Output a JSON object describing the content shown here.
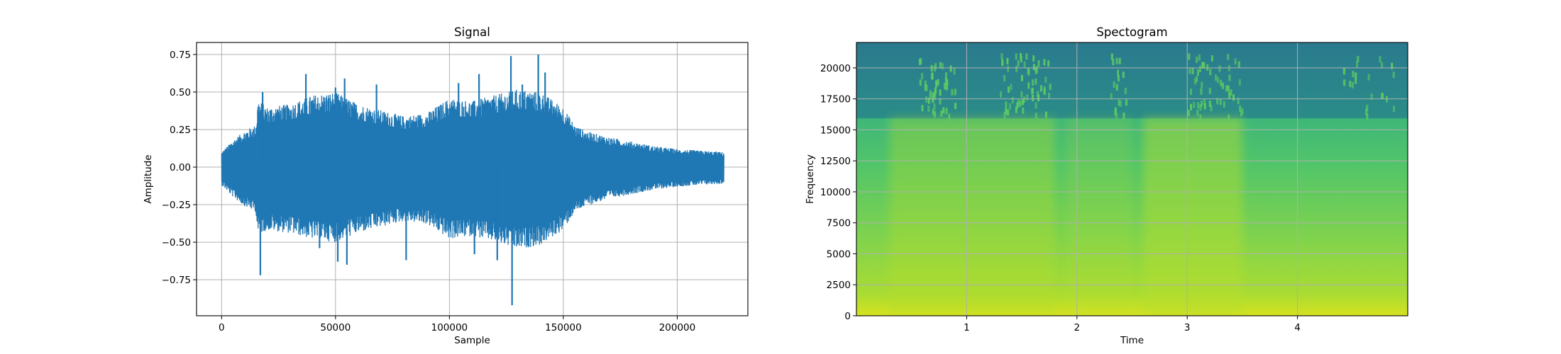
{
  "chart_data": [
    {
      "type": "line",
      "title": "Signal",
      "xlabel": "Sample",
      "ylabel": "Amplitude",
      "xlim": [
        -11000,
        231000
      ],
      "ylim": [
        -0.99,
        0.83
      ],
      "xticks": [
        0,
        50000,
        100000,
        150000,
        200000
      ],
      "xtick_labels": [
        "0",
        "50000",
        "100000",
        "150000",
        "200000"
      ],
      "yticks": [
        -0.75,
        -0.5,
        -0.25,
        0.0,
        0.25,
        0.5,
        0.75
      ],
      "ytick_labels": [
        "−0.75",
        "−0.50",
        "−0.25",
        "0.00",
        "0.25",
        "0.50",
        "0.75"
      ],
      "grid": true,
      "color": "#1f77b4",
      "envelope": {
        "x": [
          0,
          5000,
          10000,
          15000,
          16000,
          20000,
          30000,
          40000,
          50000,
          60000,
          70000,
          80000,
          90000,
          100000,
          110000,
          120000,
          130000,
          140000,
          150000,
          155000,
          160000,
          170000,
          180000,
          190000,
          200000,
          210000,
          220500
        ],
        "upper": [
          0.1,
          0.18,
          0.24,
          0.28,
          0.45,
          0.4,
          0.42,
          0.48,
          0.5,
          0.42,
          0.38,
          0.34,
          0.36,
          0.46,
          0.44,
          0.48,
          0.52,
          0.5,
          0.4,
          0.28,
          0.24,
          0.2,
          0.17,
          0.14,
          0.12,
          0.11,
          0.1
        ],
        "lower": [
          -0.12,
          -0.2,
          -0.26,
          -0.3,
          -0.45,
          -0.42,
          -0.44,
          -0.48,
          -0.5,
          -0.44,
          -0.4,
          -0.36,
          -0.38,
          -0.48,
          -0.46,
          -0.5,
          -0.55,
          -0.52,
          -0.42,
          -0.3,
          -0.26,
          -0.21,
          -0.18,
          -0.15,
          -0.13,
          -0.12,
          -0.11
        ]
      },
      "spikes": [
        {
          "x": 17000,
          "y": -0.72
        },
        {
          "x": 18000,
          "y": 0.5
        },
        {
          "x": 37000,
          "y": 0.62
        },
        {
          "x": 43000,
          "y": -0.54
        },
        {
          "x": 50000,
          "y": 0.53
        },
        {
          "x": 51000,
          "y": -0.63
        },
        {
          "x": 54000,
          "y": 0.59
        },
        {
          "x": 55000,
          "y": -0.65
        },
        {
          "x": 68000,
          "y": 0.55
        },
        {
          "x": 81000,
          "y": -0.62
        },
        {
          "x": 104000,
          "y": 0.56
        },
        {
          "x": 111000,
          "y": -0.58
        },
        {
          "x": 113000,
          "y": 0.62
        },
        {
          "x": 121000,
          "y": -0.62
        },
        {
          "x": 127000,
          "y": 0.74
        },
        {
          "x": 127500,
          "y": -0.92
        },
        {
          "x": 132000,
          "y": 0.55
        },
        {
          "x": 139000,
          "y": 0.75
        },
        {
          "x": 142000,
          "y": 0.63
        }
      ]
    },
    {
      "type": "heatmap",
      "title": "Spectogram",
      "xlabel": "Time",
      "ylabel": "Frequency",
      "xlim": [
        0.0,
        5.0
      ],
      "ylim": [
        0,
        22050
      ],
      "xticks": [
        1,
        2,
        3,
        4
      ],
      "xtick_labels": [
        "1",
        "2",
        "3",
        "4"
      ],
      "yticks": [
        0,
        2500,
        5000,
        7500,
        10000,
        12500,
        15000,
        17500,
        20000
      ],
      "ytick_labels": [
        "0",
        "2500",
        "5000",
        "7500",
        "10000",
        "12500",
        "15000",
        "17500",
        "20000"
      ],
      "grid": true,
      "colormap": "viridis",
      "cutoff_frequency": 16000,
      "colors": {
        "low_band": "#a6db35",
        "mid_band": "#4fc16b",
        "high_band": "#2a788e",
        "cutoff_band": "#2d9a86"
      }
    }
  ]
}
